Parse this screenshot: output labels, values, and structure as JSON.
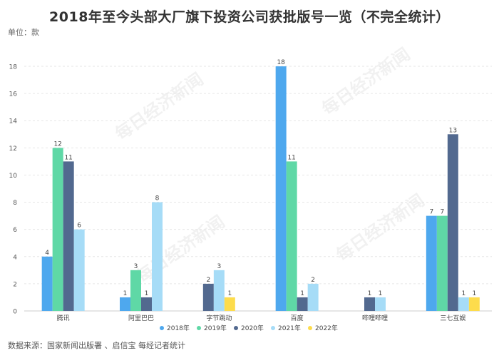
{
  "title": "2018年至今头部大厂旗下投资公司获批版号一览（不完全统计）",
  "unit_label": "单位：款",
  "source": "数据来源：国家新闻出版署 、启信宝 每经记者统计",
  "watermark": "每日经济新闻",
  "chart_data": {
    "type": "bar",
    "categories": [
      "腾讯",
      "阿里巴巴",
      "字节跳动",
      "百度",
      "哔哩哔哩",
      "三七互娱"
    ],
    "series": [
      {
        "name": "2018年",
        "color": "#4ea8ee",
        "values": [
          4,
          1,
          null,
          18,
          null,
          7
        ]
      },
      {
        "name": "2019年",
        "color": "#5fd8a6",
        "values": [
          12,
          3,
          null,
          11,
          null,
          7
        ]
      },
      {
        "name": "2020年",
        "color": "#52698f",
        "values": [
          11,
          1,
          2,
          1,
          1,
          13
        ]
      },
      {
        "name": "2021年",
        "color": "#a6dcf7",
        "values": [
          6,
          8,
          3,
          2,
          1,
          1
        ]
      },
      {
        "name": "2022年",
        "color": "#fddc4c",
        "values": [
          null,
          null,
          1,
          null,
          null,
          1
        ]
      }
    ],
    "ylim": [
      0,
      18
    ],
    "yticks": [
      0,
      2,
      4,
      6,
      8,
      10,
      12,
      14,
      16,
      18
    ],
    "grid": true,
    "legend": "bottom-center"
  }
}
